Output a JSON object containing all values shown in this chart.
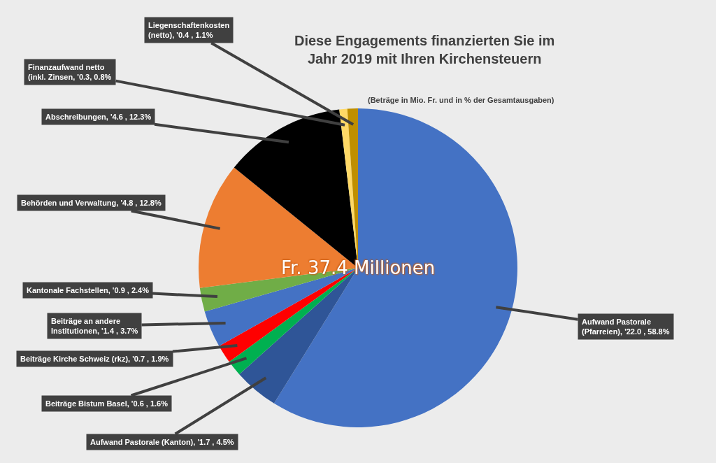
{
  "chart_data": {
    "type": "pie",
    "title": "Diese Engagements finanzierten Sie im Jahr 2019 mit Ihren Kirchensteuern",
    "subtitle": "(Beträge in Mio. Fr. und in % der Gesamtausgaben)",
    "categories": [
      "Aufwand Pastorale (Pfarreien)",
      "Aufwand Pastorale (Kanton)",
      "Beiträge Bistum Basel",
      "Beiträge Kirche Schweiz (rkz)",
      "Beiträge an andere Institutionen",
      "Kantonale Fachstellen",
      "Behörden und Verwaltung",
      "Abschreibungen",
      "Finanzaufwand netto (inkl. Zinsen",
      "Liegenschaftenkosten (netto)"
    ],
    "values": [
      22.0,
      1.7,
      0.6,
      0.7,
      1.4,
      0.9,
      4.8,
      4.6,
      0.3,
      0.4
    ],
    "value_labels": [
      "'22.0 , 58.8%",
      "'1.7 , 4.5%",
      "'0.6 , 1.6%",
      "'0.7 , 1.9%",
      "'1.4 , 3.7%",
      "'0.9 , 2.4%",
      "'4.8 , 12.8%",
      "'4.6 , 12.3%",
      "'0.3, 0.8%",
      "'0.4 , 1.1%"
    ],
    "colors": [
      "#4472c4",
      "#2f5597",
      "#00b050",
      "#ff0000",
      "#4472c4",
      "#70ad47",
      "#ed7d31",
      "#000000",
      "#ffd966",
      "#bf8f00"
    ],
    "annotations": [
      "Fr. 37.4 Millionen"
    ]
  }
}
